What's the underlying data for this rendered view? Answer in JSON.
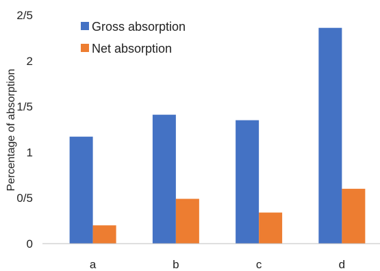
{
  "chart_data": {
    "type": "bar",
    "categories": [
      "a",
      "b",
      "c",
      "d"
    ],
    "series": [
      {
        "name": "Gross absorption",
        "color": "#4472c4",
        "values": [
          1.17,
          1.41,
          1.35,
          2.36
        ]
      },
      {
        "name": "Net absorption",
        "color": "#ed7d31",
        "values": [
          0.2,
          0.49,
          0.34,
          0.6
        ]
      }
    ],
    "y_ticks": [
      {
        "value": 0,
        "label": "0"
      },
      {
        "value": 0.5,
        "label": "0/5"
      },
      {
        "value": 1,
        "label": "1"
      },
      {
        "value": 1.5,
        "label": "1/5"
      },
      {
        "value": 2,
        "label": "2"
      },
      {
        "value": 2.5,
        "label": "2/5"
      }
    ],
    "ylim": [
      0,
      2.5
    ],
    "ylabel": "Percentage of absorption",
    "xlabel": "",
    "title": "",
    "grid": false,
    "legend_position": "top-left"
  }
}
